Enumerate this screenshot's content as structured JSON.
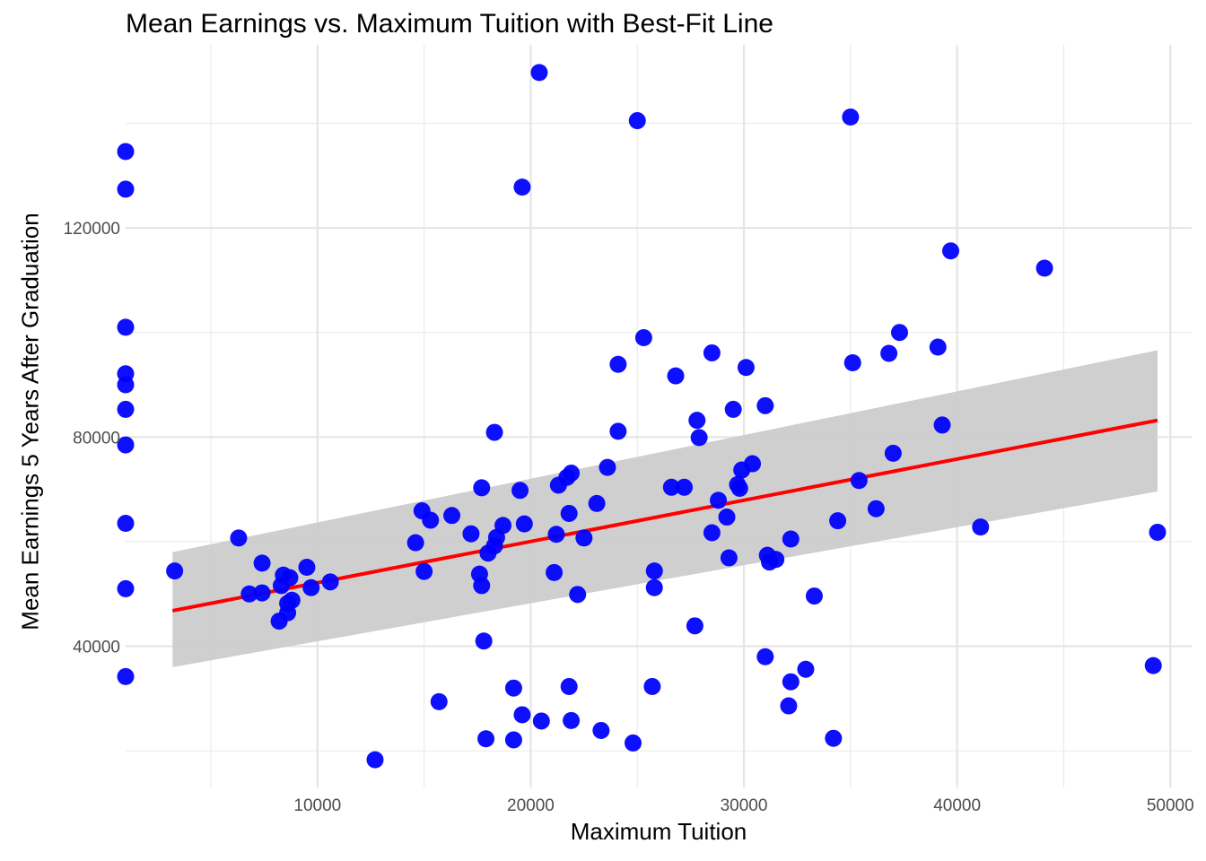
{
  "chart_data": {
    "type": "scatter",
    "title": "Mean Earnings vs. Maximum Tuition with Best-Fit Line",
    "xlabel": "Maximum Tuition",
    "ylabel": "Mean Earnings 5 Years After Graduation",
    "xlim": [
      1000,
      51000
    ],
    "ylim": [
      13000,
      155000
    ],
    "x_ticks": [
      10000,
      20000,
      30000,
      40000,
      50000
    ],
    "x_tick_labels": [
      "10000",
      "20000",
      "30000",
      "40000",
      "50000"
    ],
    "y_ticks": [
      40000,
      80000,
      120000
    ],
    "y_tick_labels": [
      "40000",
      "80000",
      "120000"
    ],
    "x_minor_ticks": [
      5000,
      15000,
      25000,
      35000,
      45000
    ],
    "y_minor_ticks": [
      20000,
      60000,
      100000,
      140000
    ],
    "grid": true,
    "point_color": "#0000ff",
    "fit_line_color": "#ff0000",
    "ribbon_color": "#cccccc",
    "fit_line": {
      "x": [
        3200,
        49400
      ],
      "y": [
        46800,
        83200
      ]
    },
    "confidence_band": {
      "x": [
        3200,
        49400
      ],
      "lower": [
        36000,
        69600
      ],
      "upper": [
        58000,
        96600
      ]
    },
    "points": [
      [
        1000,
        134600
      ],
      [
        1000,
        127400
      ],
      [
        1000,
        101000
      ],
      [
        1000,
        92100
      ],
      [
        1000,
        90000
      ],
      [
        1000,
        85300
      ],
      [
        1000,
        78500
      ],
      [
        1000,
        63500
      ],
      [
        1000,
        51000
      ],
      [
        1000,
        34200
      ],
      [
        3300,
        54400
      ],
      [
        6300,
        60700
      ],
      [
        6800,
        50000
      ],
      [
        7400,
        55900
      ],
      [
        7400,
        50200
      ],
      [
        8200,
        44800
      ],
      [
        8300,
        51600
      ],
      [
        8400,
        53600
      ],
      [
        8600,
        48200
      ],
      [
        8600,
        46400
      ],
      [
        8700,
        53100
      ],
      [
        8800,
        48800
      ],
      [
        9500,
        55100
      ],
      [
        9700,
        51200
      ],
      [
        10600,
        52300
      ],
      [
        12700,
        18300
      ],
      [
        14600,
        59800
      ],
      [
        14900,
        65900
      ],
      [
        15000,
        54300
      ],
      [
        15300,
        64100
      ],
      [
        15700,
        29400
      ],
      [
        16300,
        65000
      ],
      [
        17200,
        61500
      ],
      [
        17600,
        53800
      ],
      [
        17700,
        51600
      ],
      [
        17700,
        70300
      ],
      [
        17800,
        41000
      ],
      [
        17900,
        22300
      ],
      [
        18000,
        57800
      ],
      [
        18300,
        80900
      ],
      [
        18300,
        59200
      ],
      [
        18400,
        60800
      ],
      [
        18700,
        63100
      ],
      [
        19200,
        32000
      ],
      [
        19200,
        22100
      ],
      [
        19500,
        69800
      ],
      [
        19600,
        127800
      ],
      [
        19600,
        26900
      ],
      [
        19700,
        63400
      ],
      [
        20400,
        149700
      ],
      [
        20500,
        25700
      ],
      [
        21100,
        54100
      ],
      [
        21200,
        61400
      ],
      [
        21300,
        70800
      ],
      [
        21700,
        72300
      ],
      [
        21800,
        65400
      ],
      [
        21800,
        32300
      ],
      [
        21900,
        25800
      ],
      [
        21900,
        73100
      ],
      [
        22200,
        49900
      ],
      [
        22500,
        60700
      ],
      [
        23100,
        67300
      ],
      [
        23300,
        23900
      ],
      [
        23600,
        74200
      ],
      [
        24100,
        93900
      ],
      [
        24100,
        81100
      ],
      [
        24800,
        21500
      ],
      [
        25000,
        140500
      ],
      [
        25300,
        99000
      ],
      [
        25700,
        32300
      ],
      [
        25800,
        51200
      ],
      [
        25800,
        54400
      ],
      [
        26600,
        70400
      ],
      [
        26800,
        91700
      ],
      [
        27200,
        70400
      ],
      [
        27700,
        43900
      ],
      [
        27800,
        83200
      ],
      [
        27900,
        79900
      ],
      [
        28500,
        96100
      ],
      [
        28500,
        61700
      ],
      [
        28800,
        67900
      ],
      [
        29200,
        64700
      ],
      [
        29300,
        56900
      ],
      [
        29500,
        85300
      ],
      [
        29700,
        70900
      ],
      [
        29800,
        70200
      ],
      [
        29900,
        73700
      ],
      [
        30100,
        93300
      ],
      [
        30400,
        74900
      ],
      [
        31000,
        38000
      ],
      [
        31000,
        86000
      ],
      [
        31100,
        57400
      ],
      [
        31200,
        56100
      ],
      [
        31500,
        56600
      ],
      [
        32100,
        28600
      ],
      [
        32200,
        60500
      ],
      [
        32200,
        33200
      ],
      [
        32900,
        35600
      ],
      [
        33300,
        49600
      ],
      [
        34200,
        22400
      ],
      [
        34400,
        64000
      ],
      [
        35000,
        141200
      ],
      [
        35100,
        94200
      ],
      [
        35400,
        71700
      ],
      [
        36200,
        66300
      ],
      [
        36800,
        96000
      ],
      [
        37000,
        76900
      ],
      [
        37300,
        100000
      ],
      [
        39100,
        97200
      ],
      [
        39300,
        82300
      ],
      [
        39700,
        115600
      ],
      [
        41100,
        62800
      ],
      [
        44100,
        112300
      ],
      [
        49200,
        36300
      ],
      [
        49400,
        61800
      ]
    ]
  }
}
